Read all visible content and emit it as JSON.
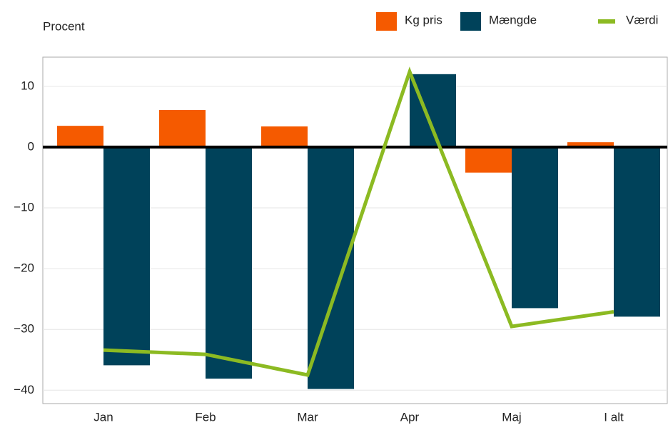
{
  "chart_data": {
    "type": "bar",
    "y_label": "Procent",
    "categories": [
      "Jan",
      "Feb",
      "Mar",
      "Apr",
      "Maj",
      "I alt"
    ],
    "series": [
      {
        "name": "Kg pris",
        "color": "#f55a00",
        "values": [
          3.5,
          6.1,
          3.4,
          0.1,
          -4.2,
          0.8
        ]
      },
      {
        "name": "Mængde",
        "color": "#00425a",
        "values": [
          -35.9,
          -38.1,
          -39.8,
          12.0,
          -26.5,
          -27.9
        ]
      },
      {
        "name": "Værdi",
        "type": "line",
        "color": "#8cba22",
        "values": [
          -33.4,
          -34.1,
          -37.5,
          12.4,
          -29.5,
          -27.1
        ]
      }
    ],
    "ylim": [
      -42.2,
      14.8
    ],
    "yticks": [
      {
        "value": -40,
        "label": "−40"
      },
      {
        "value": -30,
        "label": "−30"
      },
      {
        "value": -20,
        "label": "−20"
      },
      {
        "value": -10,
        "label": "−10"
      },
      0,
      10
    ],
    "grid": true
  }
}
